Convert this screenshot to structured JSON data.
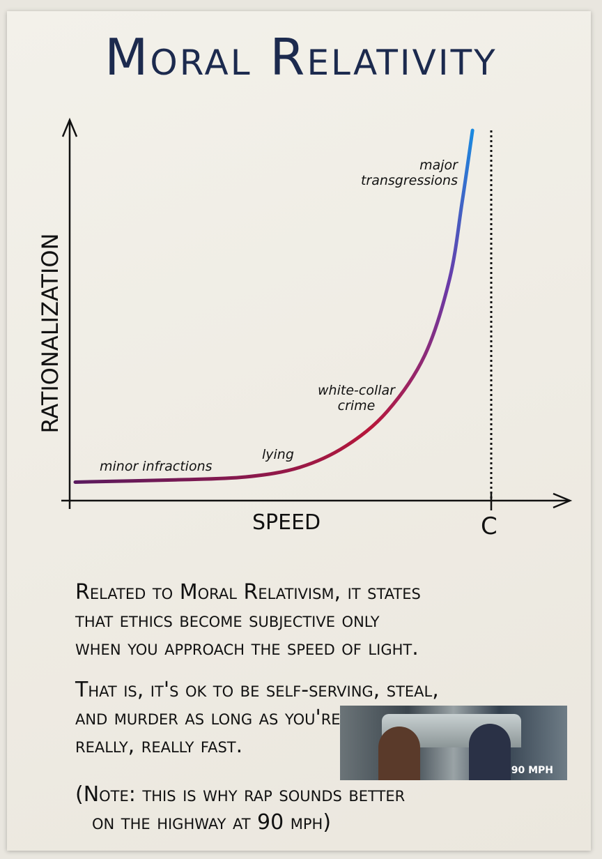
{
  "title": "Moral Relativity",
  "chart_data": {
    "type": "line",
    "title": "Moral Relativity",
    "xlabel": "Speed",
    "ylabel": "Rationalization",
    "x_marker": {
      "label": "C",
      "x": 1.0,
      "style": "dotted"
    },
    "x": [
      0,
      0.24,
      0.41,
      0.54,
      0.65,
      0.75,
      0.84,
      0.9,
      0.93,
      0.955
    ],
    "y": [
      5,
      5.6,
      6.4,
      9,
      14.7,
      24.1,
      39.2,
      59.9,
      80.6,
      100
    ],
    "xlim": [
      0,
      1.2
    ],
    "ylim": [
      0,
      100
    ],
    "grid": false,
    "colors": {
      "start": "#5a1a5e",
      "mid": "#b8173a",
      "end": "#1a8ae0"
    },
    "annotations": [
      {
        "text": "minor infractions"
      },
      {
        "text": "lying"
      },
      {
        "text": "white-collar crime",
        "lines": [
          "white-collar",
          "crime"
        ]
      },
      {
        "text": "major transgressions",
        "lines": [
          "major",
          "transgressions"
        ]
      }
    ]
  },
  "body": {
    "p1": [
      "Related to Moral Relativism, it states",
      "that ethics become subjective only",
      "when you approach the speed of light."
    ],
    "p2": [
      "That is, it's ok to be self-serving, steal,",
      "and murder as long as you're going",
      "really, really fast."
    ],
    "p3": [
      "(Note: this is why rap sounds better",
      "on the highway at 90 mph)"
    ]
  },
  "photo": {
    "speedometer": "90 MPH"
  }
}
